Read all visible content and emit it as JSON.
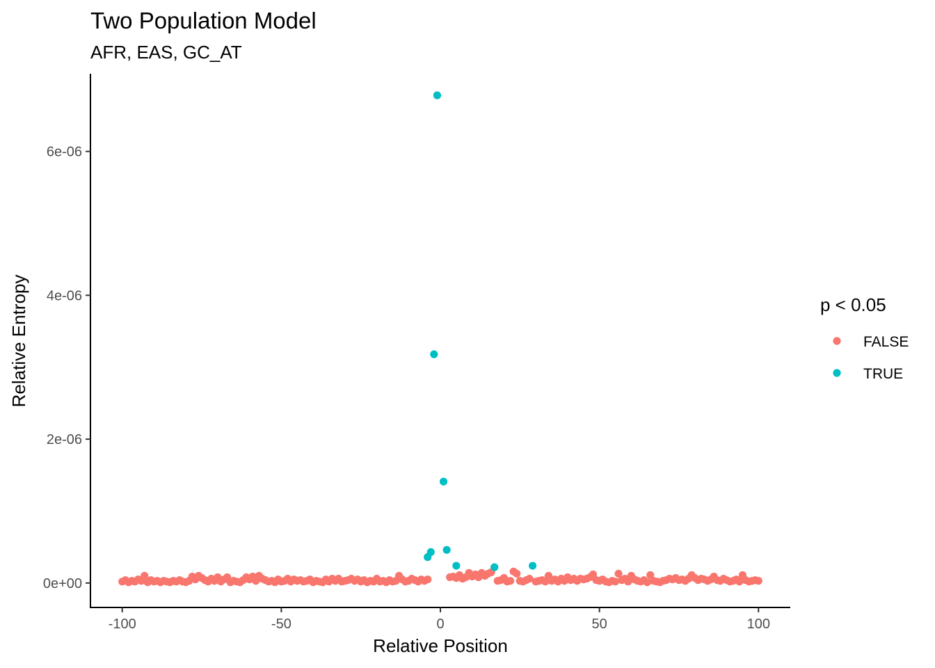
{
  "chart_data": {
    "type": "scatter",
    "title": "Two Population Model",
    "subtitle": "AFR, EAS, GC_AT",
    "xlabel": "Relative Position",
    "ylabel": "Relative Entropy",
    "xlim": [
      -110,
      110
    ],
    "ylim": [
      -3.4e-07,
      7.08e-06
    ],
    "x_ticks": [
      -100,
      -50,
      0,
      50,
      100
    ],
    "x_tick_labels": [
      "-100",
      "-50",
      "0",
      "50",
      "100"
    ],
    "y_ticks": [
      0,
      2e-06,
      4e-06,
      6e-06
    ],
    "y_tick_labels": [
      "0e+00",
      "2e-06",
      "4e-06",
      "6e-06"
    ],
    "grid": false,
    "legend": {
      "title": "p < 0.05",
      "placement": "right",
      "entries": [
        {
          "label": "FALSE",
          "color": "#F8766D"
        },
        {
          "label": "TRUE",
          "color": "#00BFC4"
        }
      ]
    },
    "series": [
      {
        "name": "FALSE",
        "color": "#F8766D",
        "points": [
          [
            -100,
            2e-08
          ],
          [
            -99,
            4e-08
          ],
          [
            -98,
            1e-08
          ],
          [
            -97,
            3e-08
          ],
          [
            -96,
            2e-08
          ],
          [
            -95,
            5e-08
          ],
          [
            -94,
            3e-08
          ],
          [
            -93,
            1e-07
          ],
          [
            -92,
            1e-08
          ],
          [
            -91,
            4e-08
          ],
          [
            -90,
            2e-08
          ],
          [
            -89,
            3e-08
          ],
          [
            -88,
            1e-08
          ],
          [
            -87,
            3e-08
          ],
          [
            -86,
            2e-08
          ],
          [
            -85,
            1e-08
          ],
          [
            -84,
            3e-08
          ],
          [
            -83,
            2e-08
          ],
          [
            -82,
            4e-08
          ],
          [
            -81,
            2e-08
          ],
          [
            -80,
            1e-08
          ],
          [
            -79,
            3e-08
          ],
          [
            -78,
            9e-08
          ],
          [
            -77,
            5e-08
          ],
          [
            -76,
            1e-07
          ],
          [
            -75,
            7e-08
          ],
          [
            -74,
            4e-08
          ],
          [
            -73,
            2e-08
          ],
          [
            -72,
            6e-08
          ],
          [
            -71,
            3e-08
          ],
          [
            -70,
            8e-08
          ],
          [
            -69,
            2e-08
          ],
          [
            -68,
            5e-08
          ],
          [
            -67,
            8e-08
          ],
          [
            -66,
            1e-08
          ],
          [
            -65,
            3e-08
          ],
          [
            -64,
            2e-08
          ],
          [
            -63,
            1e-08
          ],
          [
            -62,
            4e-08
          ],
          [
            -61,
            8e-08
          ],
          [
            -60,
            5e-08
          ],
          [
            -59,
            9e-08
          ],
          [
            -58,
            3e-08
          ],
          [
            -57,
            1e-07
          ],
          [
            -56,
            6e-08
          ],
          [
            -55,
            4e-08
          ],
          [
            -54,
            2e-08
          ],
          [
            -53,
            3e-08
          ],
          [
            -52,
            1e-08
          ],
          [
            -51,
            5e-08
          ],
          [
            -50,
            2e-08
          ],
          [
            -49,
            3e-08
          ],
          [
            -48,
            6e-08
          ],
          [
            -47,
            2e-08
          ],
          [
            -46,
            5e-08
          ],
          [
            -45,
            3e-08
          ],
          [
            -44,
            4e-08
          ],
          [
            -43,
            2e-08
          ],
          [
            -42,
            3e-08
          ],
          [
            -41,
            5e-08
          ],
          [
            -40,
            1e-08
          ],
          [
            -39,
            3e-08
          ],
          [
            -38,
            2e-08
          ],
          [
            -37,
            1e-08
          ],
          [
            -36,
            5e-08
          ],
          [
            -35,
            2e-08
          ],
          [
            -34,
            6e-08
          ],
          [
            -33,
            3e-08
          ],
          [
            -32,
            6e-08
          ],
          [
            -31,
            2e-08
          ],
          [
            -30,
            3e-08
          ],
          [
            -29,
            4e-08
          ],
          [
            -28,
            6e-08
          ],
          [
            -27,
            3e-08
          ],
          [
            -26,
            5e-08
          ],
          [
            -25,
            2e-08
          ],
          [
            -24,
            4e-08
          ],
          [
            -23,
            1e-08
          ],
          [
            -22,
            3e-08
          ],
          [
            -21,
            2e-08
          ],
          [
            -20,
            6e-08
          ],
          [
            -19,
            2e-08
          ],
          [
            -18,
            3e-08
          ],
          [
            -17,
            1e-08
          ],
          [
            -16,
            4e-08
          ],
          [
            -15,
            2e-08
          ],
          [
            -14,
            3e-08
          ],
          [
            -13,
            1e-07
          ],
          [
            -12,
            5e-08
          ],
          [
            -11,
            2e-08
          ],
          [
            -10,
            3e-08
          ],
          [
            -9,
            6e-08
          ],
          [
            -8,
            4e-08
          ],
          [
            -7,
            2e-08
          ],
          [
            -6,
            5e-08
          ],
          [
            -5,
            3e-08
          ],
          [
            -4,
            5e-08
          ],
          [
            3,
            8e-08
          ],
          [
            4,
            9e-08
          ],
          [
            5,
            7e-08
          ],
          [
            6,
            1.1e-07
          ],
          [
            7,
            6e-08
          ],
          [
            8,
            8e-08
          ],
          [
            9,
            1.4e-07
          ],
          [
            10,
            9e-08
          ],
          [
            11,
            1.2e-07
          ],
          [
            12,
            8e-08
          ],
          [
            13,
            1.4e-07
          ],
          [
            14,
            1e-07
          ],
          [
            15,
            1.3e-07
          ],
          [
            16,
            1.5e-07
          ],
          [
            18,
            3e-08
          ],
          [
            19,
            4e-08
          ],
          [
            20,
            7e-08
          ],
          [
            21,
            2e-08
          ],
          [
            22,
            3e-08
          ],
          [
            23,
            1.6e-07
          ],
          [
            24,
            1.3e-07
          ],
          [
            25,
            3e-08
          ],
          [
            26,
            2e-08
          ],
          [
            27,
            4e-08
          ],
          [
            28,
            6e-08
          ],
          [
            30,
            2e-08
          ],
          [
            31,
            3e-08
          ],
          [
            32,
            4e-08
          ],
          [
            33,
            2e-08
          ],
          [
            34,
            1e-07
          ],
          [
            35,
            3e-08
          ],
          [
            36,
            5e-08
          ],
          [
            37,
            2e-08
          ],
          [
            38,
            6e-08
          ],
          [
            39,
            3e-08
          ],
          [
            40,
            8e-08
          ],
          [
            41,
            4e-08
          ],
          [
            42,
            6e-08
          ],
          [
            43,
            3e-08
          ],
          [
            44,
            6e-08
          ],
          [
            45,
            5e-08
          ],
          [
            46,
            6e-08
          ],
          [
            47,
            8e-08
          ],
          [
            48,
            1.2e-07
          ],
          [
            49,
            4e-08
          ],
          [
            50,
            3e-08
          ],
          [
            51,
            5e-08
          ],
          [
            52,
            2e-08
          ],
          [
            53,
            1e-08
          ],
          [
            54,
            3e-08
          ],
          [
            55,
            2e-08
          ],
          [
            56,
            1.3e-07
          ],
          [
            57,
            4e-08
          ],
          [
            58,
            6e-08
          ],
          [
            59,
            2e-08
          ],
          [
            60,
            1e-07
          ],
          [
            61,
            5e-08
          ],
          [
            62,
            3e-08
          ],
          [
            63,
            2e-08
          ],
          [
            64,
            4e-08
          ],
          [
            65,
            1e-08
          ],
          [
            66,
            1.1e-07
          ],
          [
            67,
            3e-08
          ],
          [
            68,
            2e-08
          ],
          [
            69,
            1e-08
          ],
          [
            70,
            3e-08
          ],
          [
            71,
            4e-08
          ],
          [
            72,
            6e-08
          ],
          [
            73,
            5e-08
          ],
          [
            74,
            7e-08
          ],
          [
            75,
            4e-08
          ],
          [
            76,
            5e-08
          ],
          [
            77,
            3e-08
          ],
          [
            78,
            6e-08
          ],
          [
            79,
            1.1e-07
          ],
          [
            80,
            7e-08
          ],
          [
            81,
            4e-08
          ],
          [
            82,
            6e-08
          ],
          [
            83,
            5e-08
          ],
          [
            84,
            3e-08
          ],
          [
            85,
            5e-08
          ],
          [
            86,
            9e-08
          ],
          [
            87,
            4e-08
          ],
          [
            88,
            3e-08
          ],
          [
            89,
            6e-08
          ],
          [
            90,
            4e-08
          ],
          [
            91,
            2e-08
          ],
          [
            92,
            3e-08
          ],
          [
            93,
            5e-08
          ],
          [
            94,
            2e-08
          ],
          [
            95,
            1.1e-07
          ],
          [
            96,
            4e-08
          ],
          [
            97,
            2e-08
          ],
          [
            98,
            3e-08
          ],
          [
            99,
            4e-08
          ],
          [
            100,
            3e-08
          ]
        ]
      },
      {
        "name": "TRUE",
        "color": "#00BFC4",
        "points": [
          [
            -1,
            6.78e-06
          ],
          [
            -2,
            3.18e-06
          ],
          [
            1,
            1.41e-06
          ],
          [
            2,
            4.6e-07
          ],
          [
            -3,
            4.3e-07
          ],
          [
            -4,
            3.6e-07
          ],
          [
            5,
            2.4e-07
          ],
          [
            17,
            2.2e-07
          ],
          [
            29,
            2.4e-07
          ]
        ]
      }
    ]
  }
}
